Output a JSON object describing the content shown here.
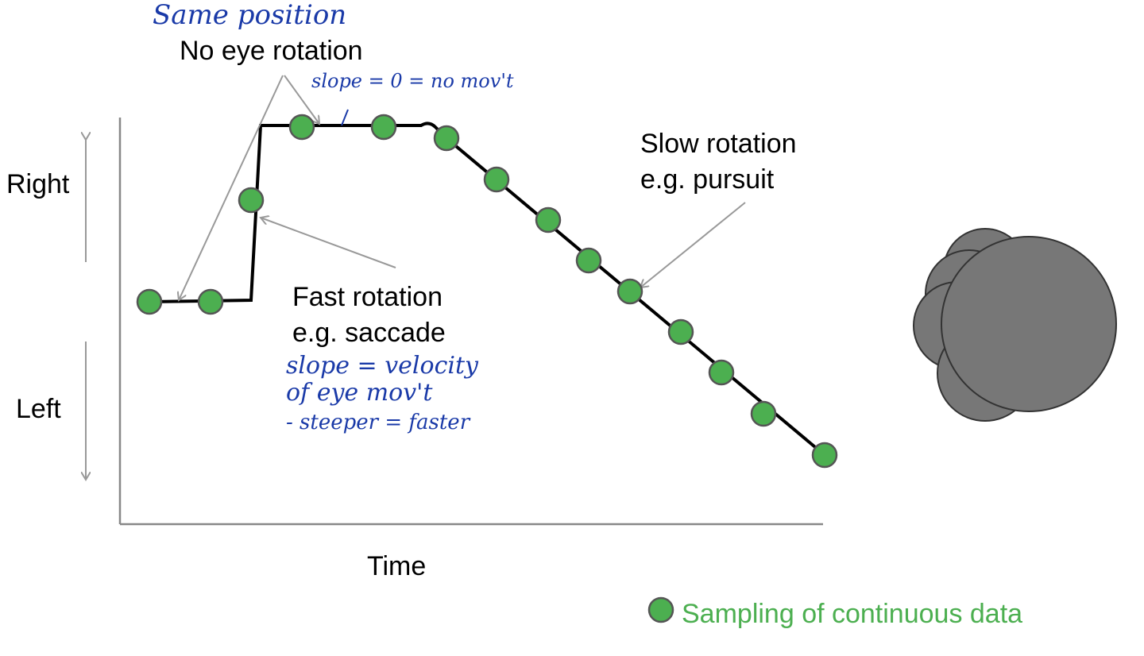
{
  "annotations": {
    "handwritten_top": "Same position",
    "no_rotation": "No eye rotation",
    "handwritten_slope_zero": "slope = 0 = no mov't",
    "fast_title": "Fast rotation",
    "fast_example": "e.g. saccade",
    "handwritten_velocity": [
      "slope = velocity",
      "of eye mov't",
      "- steeper = faster"
    ],
    "slow_title": "Slow rotation",
    "slow_example": "e.g. pursuit"
  },
  "axes": {
    "y_top": "Right",
    "y_bottom": "Left",
    "x": "Time"
  },
  "legend": {
    "label": "Sampling of continuous data"
  }
}
